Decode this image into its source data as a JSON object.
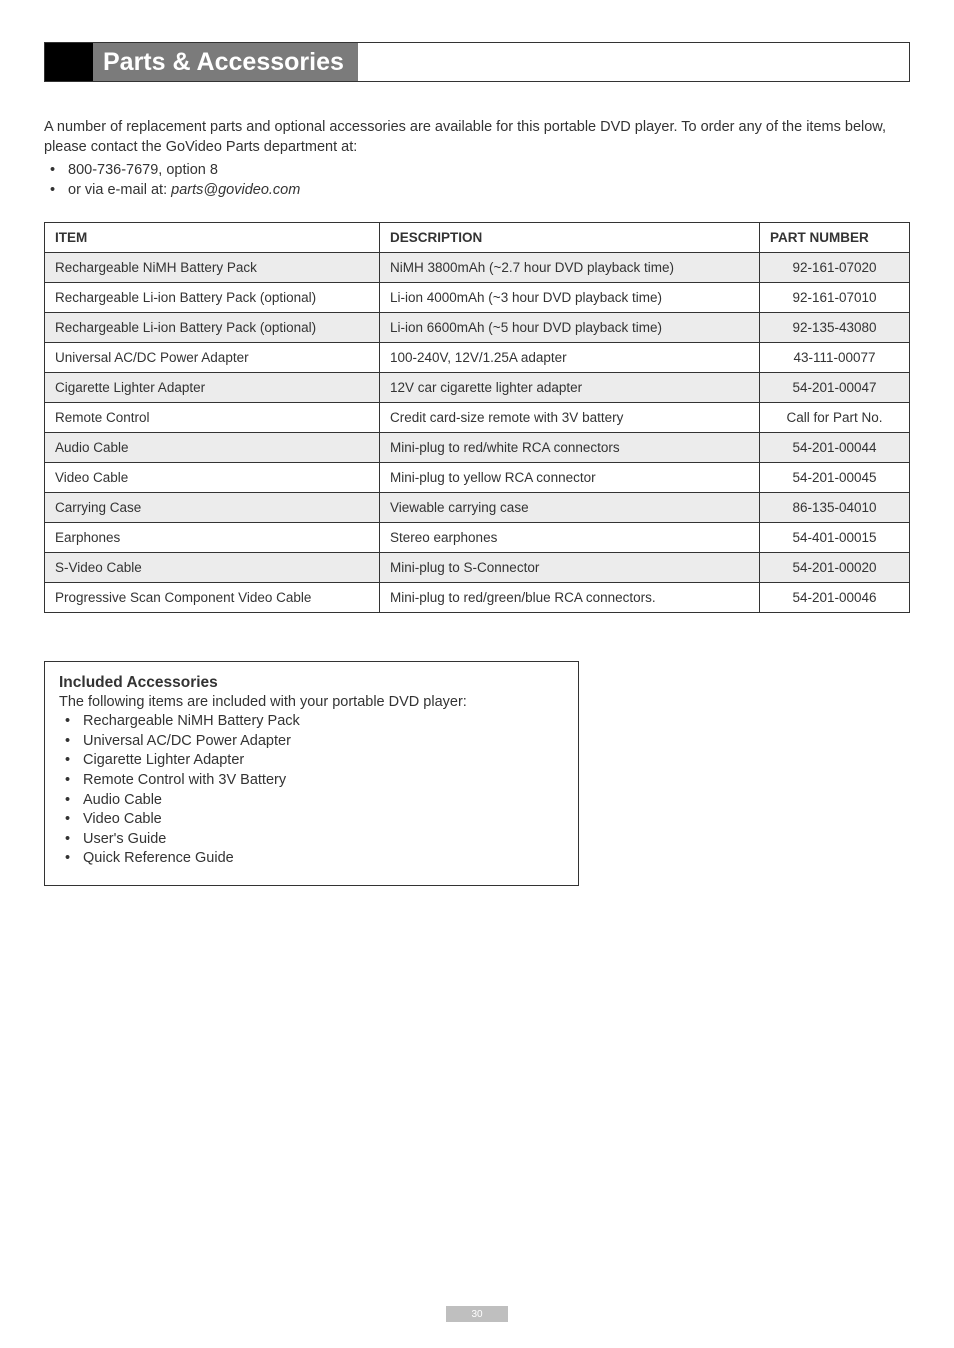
{
  "title": "Parts & Accessories",
  "intro": "A number of replacement parts and optional accessories are available for this portable DVD player. To order any of the items below, please contact the GoVideo Parts department at:",
  "contact": {
    "phone_prefix": "800-736-7679, option 8",
    "email_prefix": "or via e-mail at: ",
    "email_address": "parts@govideo.com"
  },
  "table": {
    "headers": [
      "ITEM",
      "DESCRIPTION",
      "PART NUMBER"
    ],
    "rows": [
      {
        "shaded": true,
        "cells": [
          "Rechargeable NiMH Battery Pack",
          "NiMH 3800mAh (~2.7 hour DVD playback time)",
          "92-161-07020"
        ]
      },
      {
        "shaded": false,
        "cells": [
          "Rechargeable Li-ion Battery Pack (optional)",
          "Li-ion 4000mAh (~3 hour DVD playback time)",
          "92-161-07010"
        ]
      },
      {
        "shaded": true,
        "cells": [
          "Rechargeable Li-ion Battery Pack (optional)",
          "Li-ion 6600mAh (~5 hour DVD playback time)",
          "92-135-43080"
        ]
      },
      {
        "shaded": false,
        "cells": [
          "Universal AC/DC Power Adapter",
          "100-240V, 12V/1.25A adapter",
          "43-111-00077"
        ]
      },
      {
        "shaded": true,
        "cells": [
          "Cigarette Lighter Adapter",
          "12V car cigarette lighter adapter",
          "54-201-00047"
        ]
      },
      {
        "shaded": false,
        "cells": [
          "Remote Control",
          "Credit card-size remote with 3V battery",
          "Call for Part No."
        ]
      },
      {
        "shaded": true,
        "cells": [
          "Audio Cable",
          "Mini-plug to red/white RCA connectors",
          "54-201-00044"
        ]
      },
      {
        "shaded": false,
        "cells": [
          "Video Cable",
          "Mini-plug to yellow RCA connector",
          "54-201-00045"
        ]
      },
      {
        "shaded": true,
        "cells": [
          "Carrying Case",
          "Viewable carrying case",
          "86-135-04010"
        ]
      },
      {
        "shaded": false,
        "cells": [
          "Earphones",
          "Stereo earphones",
          "54-401-00015"
        ]
      },
      {
        "shaded": true,
        "cells": [
          "S-Video Cable",
          "Mini-plug to S-Connector",
          "54-201-00020"
        ]
      },
      {
        "shaded": false,
        "cells": [
          "Progressive Scan Component Video Cable",
          "Mini-plug to red/green/blue RCA connectors.",
          "54-201-00046"
        ]
      }
    ]
  },
  "included": {
    "heading": "Included Accessories",
    "lead": "The following items are included with your portable DVD player:",
    "items": [
      "Rechargeable NiMH Battery Pack",
      "Universal AC/DC Power Adapter",
      "Cigarette Lighter Adapter",
      "Remote Control with 3V Battery",
      "Audio Cable",
      "Video Cable",
      "User's Guide",
      "Quick Reference Guide"
    ]
  },
  "page_number": "30",
  "colors": {
    "title_block": "#000000",
    "title_bg": "#7b7b7b",
    "title_fg": "#ffffff",
    "shaded_row": "#ececec",
    "text": "#333333",
    "footer_bg": "#bfbfbf"
  }
}
